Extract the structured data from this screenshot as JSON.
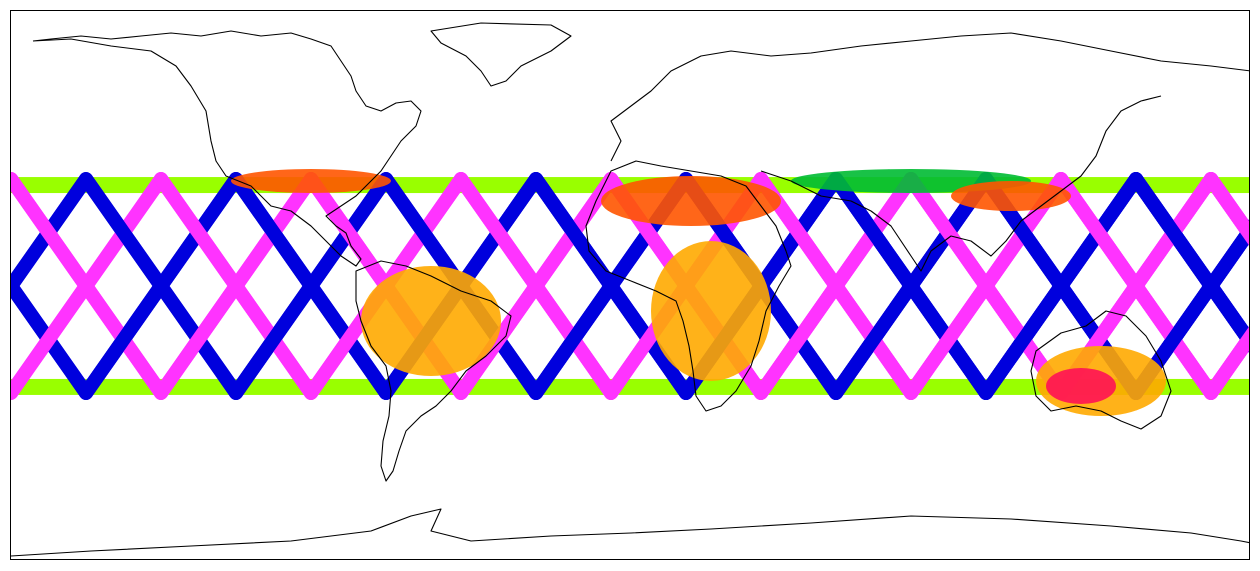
{
  "map": {
    "projection": "equirectangular",
    "extent": {
      "lon": [
        -180,
        180
      ],
      "lat": [
        -90,
        90
      ]
    },
    "swath_lat_band": [
      -35,
      35
    ],
    "legend": null,
    "title": null,
    "colors": {
      "ocean_ascending": "#ff33ff",
      "ocean_descending": "#0000dd",
      "ocean_edge": "#99ff00",
      "land_tropical": "#ffaa00",
      "land_desert": "#ff5500",
      "land_highlat": "#00bb33",
      "land_hot": "#ff1155",
      "coastline": "#000000"
    }
  }
}
